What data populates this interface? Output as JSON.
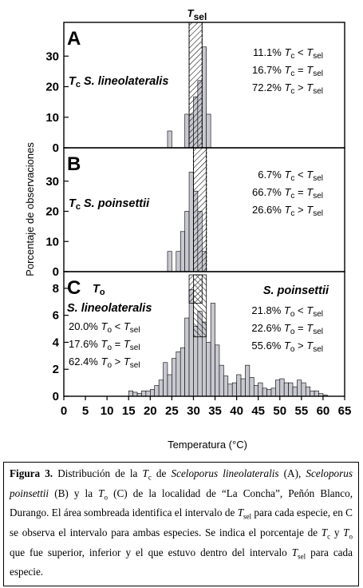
{
  "chart_data": {
    "type": "bar",
    "top_label": "Tsel",
    "ylabel": "Porcentaje de observaciones",
    "xlabel": "Temperatura (°C)",
    "xlim": [
      0,
      65
    ],
    "x_ticks": [
      0,
      5,
      10,
      15,
      20,
      25,
      30,
      35,
      40,
      45,
      50,
      55,
      60,
      65
    ],
    "bin_width": 1,
    "panels": [
      {
        "letter": "A",
        "species_prefix": "Tc",
        "species": "S. lineolateralis",
        "ylim": [
          0,
          40
        ],
        "y_ticks": [
          0,
          10,
          20,
          30
        ],
        "bins": [
          {
            "x": 24,
            "y": 5.5
          },
          {
            "x": 28,
            "y": 11
          },
          {
            "x": 29,
            "y": 11
          },
          {
            "x": 30,
            "y": 16.7
          },
          {
            "x": 31,
            "y": 22
          },
          {
            "x": 32,
            "y": 33
          },
          {
            "x": 33,
            "y": 11
          }
        ],
        "tsel": [
          [
            29,
            32
          ]
        ],
        "lines": [
          {
            "pct": "11.1%",
            "rel": "<"
          },
          {
            "pct": "16.7%",
            "rel": "="
          },
          {
            "pct": "72.2%",
            "rel": ">"
          }
        ]
      },
      {
        "letter": "B",
        "species_prefix": "Tc",
        "species": "S. poinsettii",
        "ylim": [
          0,
          40
        ],
        "y_ticks": [
          0,
          10,
          20,
          30
        ],
        "bins": [
          {
            "x": 24,
            "y": 6.7
          },
          {
            "x": 26,
            "y": 6.7
          },
          {
            "x": 27,
            "y": 13.3
          },
          {
            "x": 28,
            "y": 20
          },
          {
            "x": 29,
            "y": 33
          },
          {
            "x": 30,
            "y": 26.7
          },
          {
            "x": 31,
            "y": 20
          },
          {
            "x": 32,
            "y": 6.7
          }
        ],
        "tsel": [
          [
            30,
            33
          ]
        ],
        "lines": [
          {
            "pct": "6.7%",
            "rel": "<"
          },
          {
            "pct": "66.7%",
            "rel": "="
          },
          {
            "pct": "26.6%",
            "rel": ">"
          }
        ]
      },
      {
        "letter": "C",
        "species_prefix": "To",
        "left_species": "S. lineolateralis",
        "right_species": "S. poinsettii",
        "ylim": [
          0,
          9
        ],
        "y_ticks": [
          0,
          2,
          4,
          6,
          8
        ],
        "bins": [
          {
            "x": 15,
            "y": 0.4
          },
          {
            "x": 16,
            "y": 0.3
          },
          {
            "x": 17,
            "y": 0.2
          },
          {
            "x": 18,
            "y": 0.4
          },
          {
            "x": 19,
            "y": 0.4
          },
          {
            "x": 20,
            "y": 0.5
          },
          {
            "x": 21,
            "y": 0.8
          },
          {
            "x": 22,
            "y": 1.2
          },
          {
            "x": 23,
            "y": 2.5
          },
          {
            "x": 24,
            "y": 1.6
          },
          {
            "x": 25,
            "y": 2.8
          },
          {
            "x": 26,
            "y": 3.3
          },
          {
            "x": 27,
            "y": 3.6
          },
          {
            "x": 28,
            "y": 5.8
          },
          {
            "x": 29,
            "y": 7.9
          },
          {
            "x": 30,
            "y": 5.2
          },
          {
            "x": 31,
            "y": 6.3
          },
          {
            "x": 32,
            "y": 5.5
          },
          {
            "x": 33,
            "y": 4.0
          },
          {
            "x": 34,
            "y": 6.9
          },
          {
            "x": 35,
            "y": 3.8
          },
          {
            "x": 36,
            "y": 2.3
          },
          {
            "x": 37,
            "y": 1.5
          },
          {
            "x": 38,
            "y": 0.9
          },
          {
            "x": 39,
            "y": 1.0
          },
          {
            "x": 40,
            "y": 1.6
          },
          {
            "x": 41,
            "y": 1.3
          },
          {
            "x": 42,
            "y": 2.3
          },
          {
            "x": 43,
            "y": 1.4
          },
          {
            "x": 44,
            "y": 0.8
          },
          {
            "x": 45,
            "y": 1.0
          },
          {
            "x": 46,
            "y": 0.6
          },
          {
            "x": 47,
            "y": 0.5
          },
          {
            "x": 48,
            "y": 0.6
          },
          {
            "x": 49,
            "y": 1.2
          },
          {
            "x": 50,
            "y": 1.3
          },
          {
            "x": 51,
            "y": 1.0
          },
          {
            "x": 52,
            "y": 1.0
          },
          {
            "x": 53,
            "y": 0.7
          },
          {
            "x": 54,
            "y": 1.2
          },
          {
            "x": 55,
            "y": 1.0
          },
          {
            "x": 56,
            "y": 0.7
          },
          {
            "x": 57,
            "y": 0.4
          },
          {
            "x": 58,
            "y": 0.4
          },
          {
            "x": 59,
            "y": 0.2
          },
          {
            "x": 60,
            "y": 0.1
          }
        ],
        "tsel": [
          [
            29,
            32
          ],
          [
            30,
            33
          ]
        ],
        "left_lines": [
          {
            "pct": "20.0%",
            "rel": "<"
          },
          {
            "pct": "17.6%",
            "rel": "="
          },
          {
            "pct": "62.4%",
            "rel": ">"
          }
        ],
        "right_lines": [
          {
            "pct": "21.8%",
            "rel": "<"
          },
          {
            "pct": "22.6%",
            "rel": "="
          },
          {
            "pct": "55.6%",
            "rel": ">"
          }
        ]
      }
    ]
  },
  "caption": {
    "label": "Figura 3.",
    "text": " Distribución de la Tc de Sceloporus lineolateralis (A), Sceloporus poinsettii (B) y la To (C) de la localidad de “La Concha”, Peñón Blanco, Durango. El área sombreada identifica el intervalo de Tsel para cada especie, en C se observa el intervalo para ambas especies. Se indica el porcentaje de Tc y To que fue superior, inferior y el que estuvo dentro del intervalo Tsel para cada especie."
  }
}
